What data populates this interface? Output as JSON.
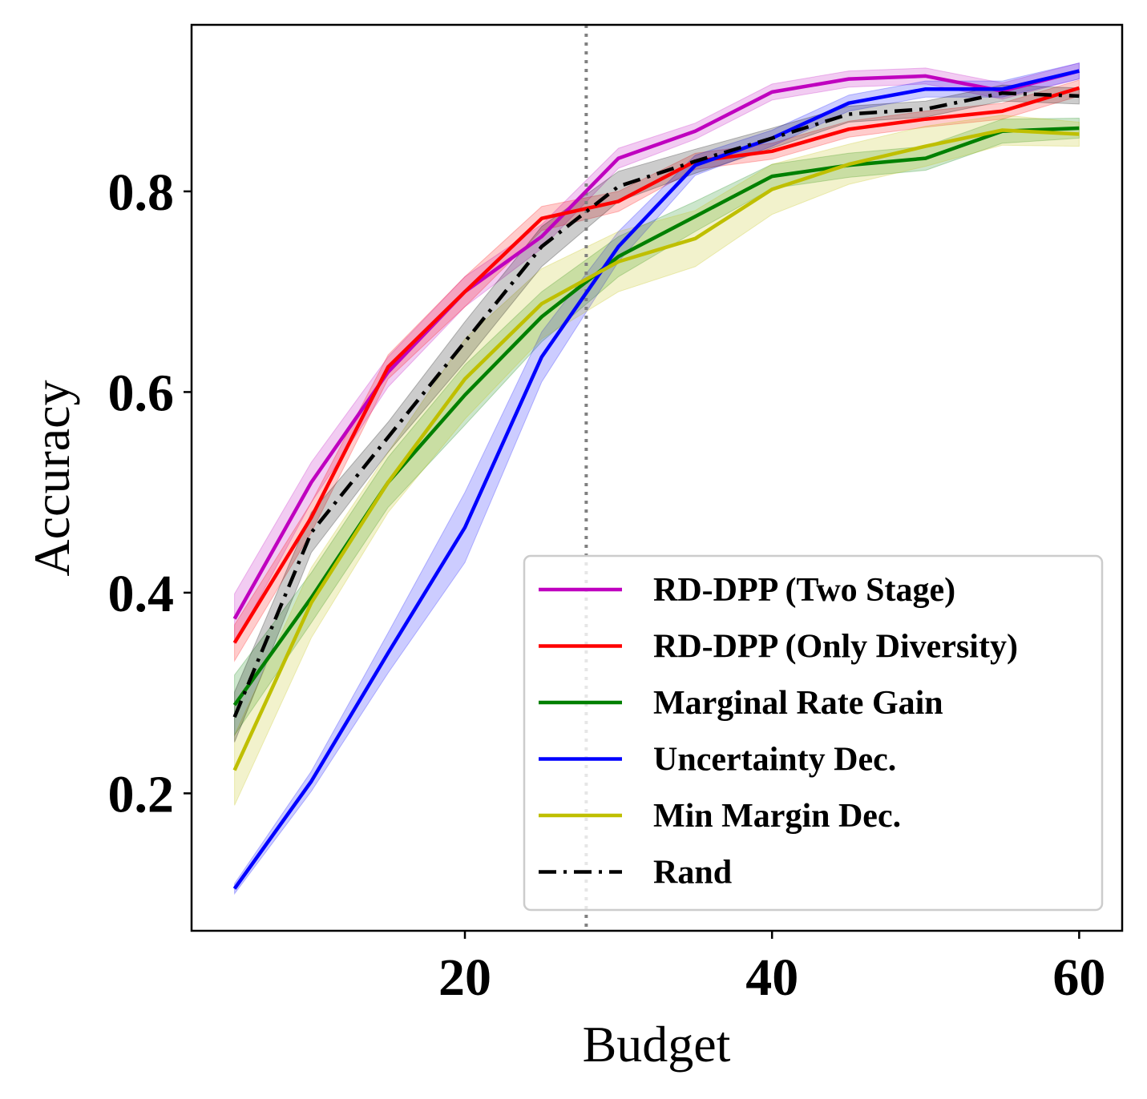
{
  "chart_data": {
    "type": "line",
    "xlabel": "Budget",
    "ylabel": "Accuracy",
    "xlim": [
      2.2,
      62.8
    ],
    "ylim": [
      0.063,
      0.966
    ],
    "xticks": [
      "20",
      "40",
      "60"
    ],
    "yticks": [
      "0.2",
      "0.4",
      "0.6",
      "0.8"
    ],
    "grid": false,
    "legend_position": "lower-right",
    "vline": {
      "x": 27.9,
      "style": "dotted",
      "color": "#808080"
    },
    "x": [
      5,
      10,
      15,
      20,
      25,
      30,
      35,
      40,
      45,
      50,
      55,
      60
    ],
    "series": [
      {
        "name": "RD-DPP (Two Stage)",
        "color": "#bf00bf",
        "dash": "solid",
        "values": [
          0.374,
          0.51,
          0.62,
          0.7,
          0.755,
          0.833,
          0.86,
          0.899,
          0.912,
          0.915,
          0.9,
          0.92
        ],
        "band": [
          0.025,
          0.02,
          0.015,
          0.015,
          0.012,
          0.01,
          0.008,
          0.008,
          0.008,
          0.008,
          0.008,
          0.008
        ]
      },
      {
        "name": "RD-DPP (Only Diversity)",
        "color": "#ff0000",
        "dash": "solid",
        "values": [
          0.35,
          0.475,
          0.625,
          0.7,
          0.773,
          0.79,
          0.83,
          0.84,
          0.862,
          0.872,
          0.88,
          0.903
        ],
        "band": [
          0.018,
          0.015,
          0.012,
          0.015,
          0.012,
          0.01,
          0.008,
          0.008,
          0.008,
          0.008,
          0.008,
          0.008
        ]
      },
      {
        "name": "Marginal Rate Gain",
        "color": "#008000",
        "dash": "solid",
        "values": [
          0.288,
          0.395,
          0.51,
          0.597,
          0.675,
          0.735,
          0.775,
          0.815,
          0.826,
          0.833,
          0.86,
          0.863
        ],
        "band": [
          0.03,
          0.025,
          0.025,
          0.03,
          0.025,
          0.02,
          0.015,
          0.012,
          0.012,
          0.012,
          0.012,
          0.01
        ]
      },
      {
        "name": "Uncertainty Dec.",
        "color": "#0000ff",
        "dash": "solid",
        "values": [
          0.105,
          0.212,
          0.34,
          0.465,
          0.635,
          0.745,
          0.826,
          0.853,
          0.888,
          0.902,
          0.902,
          0.92
        ],
        "band": [
          0.005,
          0.01,
          0.02,
          0.035,
          0.025,
          0.015,
          0.01,
          0.008,
          0.008,
          0.008,
          0.008,
          0.008
        ]
      },
      {
        "name": "Min Margin Dec.",
        "color": "#bfbf00",
        "dash": "solid",
        "values": [
          0.223,
          0.39,
          0.51,
          0.613,
          0.688,
          0.73,
          0.753,
          0.802,
          0.827,
          0.845,
          0.861,
          0.857
        ],
        "band": [
          0.035,
          0.035,
          0.03,
          0.04,
          0.035,
          0.03,
          0.028,
          0.025,
          0.02,
          0.02,
          0.015,
          0.012
        ]
      },
      {
        "name": "Rand",
        "color": "#000000",
        "dash": "dashdot",
        "values": [
          0.276,
          0.46,
          0.555,
          0.65,
          0.745,
          0.805,
          0.83,
          0.853,
          0.877,
          0.882,
          0.898,
          0.895
        ],
        "band": [
          0.025,
          0.02,
          0.015,
          0.02,
          0.02,
          0.015,
          0.012,
          0.01,
          0.008,
          0.008,
          0.008,
          0.008
        ]
      }
    ]
  }
}
